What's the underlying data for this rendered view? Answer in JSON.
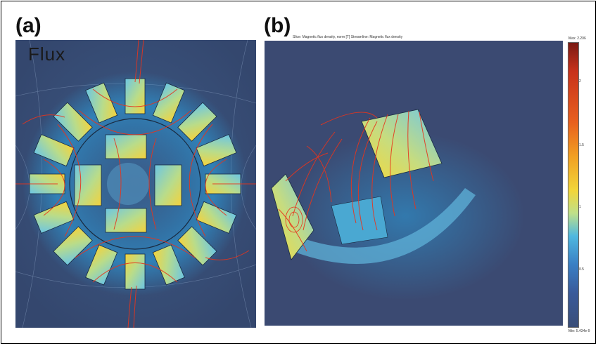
{
  "panels": {
    "a": {
      "label": "(a)",
      "overlay_text": "Flux"
    },
    "b": {
      "label": "(b)",
      "legend_text": "Slice: Magnetic flux density, norm [T]   Streamline: Magnetic flux density",
      "colorbar": {
        "max_label": "Max: 2.206",
        "min_label": "Min: 5.434e-9",
        "ticks": [
          "2",
          "1.5",
          "1",
          "0.5"
        ]
      }
    }
  },
  "colors": {
    "background_field": "#3a4e78",
    "streamline": "#e8341c",
    "high_field": "#f2d63a",
    "mid_field": "#4fb8e0"
  }
}
